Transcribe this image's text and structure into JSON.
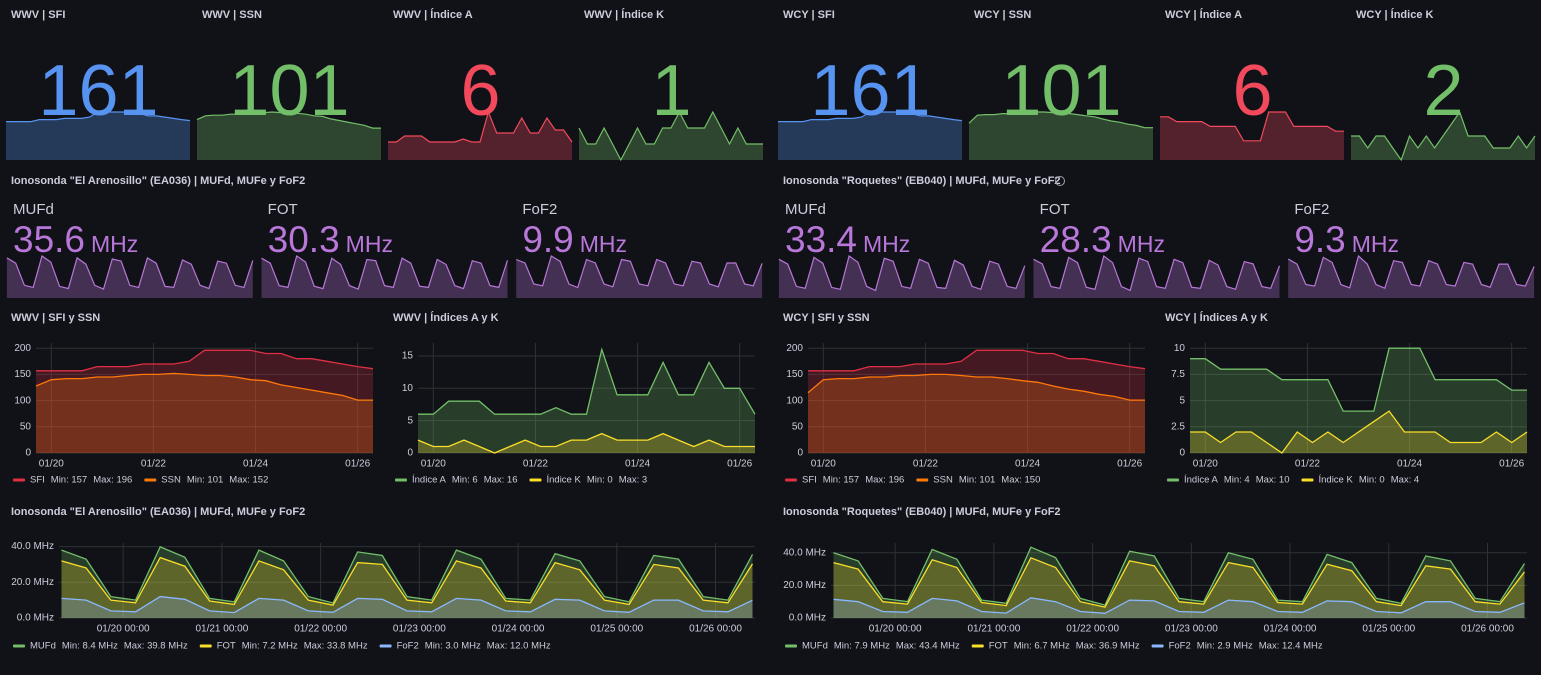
{
  "dashboards": [
    {
      "stats": [
        {
          "title": "WWV | SFI",
          "value": 161,
          "color": "#5794f2"
        },
        {
          "title": "WWV | SSN",
          "value": 101,
          "color": "#73bf69"
        },
        {
          "title": "WWV | Índice A",
          "value": 6,
          "color": "#f2495c"
        },
        {
          "title": "WWV | Índice K",
          "value": 1,
          "color": "#73bf69"
        }
      ],
      "iono_title": "Ionosonda \"El Arenosillo\" (EA036) | MUFd, MUFe y FoF2",
      "iono_color": "#b877d9",
      "iono_stats": [
        {
          "label": "MUFd",
          "value": 35.6,
          "unit": "MHz"
        },
        {
          "label": "FOT",
          "value": 30.3,
          "unit": "MHz"
        },
        {
          "label": "FoF2",
          "value": 9.9,
          "unit": "MHz"
        }
      ],
      "sfi_chart": {
        "title": "WWV | SFI y SSN",
        "x": [
          19.7,
          20,
          20.3,
          20.6,
          20.9,
          21.2,
          21.5,
          21.8,
          22.1,
          22.4,
          22.7,
          23,
          23.3,
          23.6,
          23.9,
          24.2,
          24.5,
          24.8,
          25.1,
          25.4,
          25.7,
          26,
          26.3
        ],
        "xlim": [
          19.7,
          26.3
        ],
        "xticks": [
          {
            "value": 20,
            "label": "01/20"
          },
          {
            "value": 22,
            "label": "01/22"
          },
          {
            "value": 24,
            "label": "01/24"
          },
          {
            "value": 26,
            "label": "01/26"
          }
        ],
        "ylim": [
          0,
          210
        ],
        "yticks": [
          0,
          50,
          100,
          150,
          200
        ],
        "series": [
          {
            "name": "SFI",
            "color": "#e02f44",
            "min": "Min: 157",
            "max": "Max: 196",
            "values": [
              157,
              157,
              157,
              157,
              165,
              165,
              165,
              170,
              170,
              170,
              175,
              196,
              196,
              196,
              196,
              190,
              190,
              180,
              180,
              175,
              170,
              165,
              161
            ]
          },
          {
            "name": "SSN",
            "color": "#ff780a",
            "min": "Min: 101",
            "max": "Max: 152",
            "values": [
              128,
              140,
              142,
              142,
              145,
              145,
              148,
              150,
              150,
              152,
              150,
              148,
              148,
              145,
              140,
              138,
              130,
              125,
              120,
              115,
              110,
              101,
              101
            ]
          }
        ]
      },
      "ak_chart": {
        "title": "WWV | Índices A y K",
        "x": [
          19.7,
          20,
          20.3,
          20.6,
          20.9,
          21.2,
          21.5,
          21.8,
          22.1,
          22.4,
          22.7,
          23,
          23.3,
          23.6,
          23.9,
          24.2,
          24.5,
          24.8,
          25.1,
          25.4,
          25.7,
          26,
          26.3
        ],
        "xlim": [
          19.7,
          26.3
        ],
        "xticks": [
          {
            "value": 20,
            "label": "01/20"
          },
          {
            "value": 22,
            "label": "01/22"
          },
          {
            "value": 24,
            "label": "01/24"
          },
          {
            "value": 26,
            "label": "01/26"
          }
        ],
        "ylim": [
          0,
          17
        ],
        "yticks": [
          0,
          5,
          10,
          15
        ],
        "series": [
          {
            "name": "Índice A",
            "color": "#73bf69",
            "min": "Min: 6",
            "max": "Max: 16",
            "values": [
              6,
              6,
              8,
              8,
              8,
              6,
              6,
              6,
              6,
              7,
              6,
              6,
              16,
              9,
              9,
              9,
              14,
              9,
              9,
              14,
              10,
              10,
              6
            ]
          },
          {
            "name": "Índice K",
            "color": "#fade2a",
            "min": "Min: 0",
            "max": "Max: 3",
            "values": [
              2,
              1,
              1,
              2,
              1,
              0,
              1,
              2,
              1,
              1,
              2,
              2,
              3,
              2,
              2,
              2,
              3,
              2,
              1,
              2,
              1,
              1,
              1
            ]
          }
        ]
      },
      "muf_chart": {
        "title": "Ionosonda \"El Arenosillo\" (EA036) | MUFd, MUFe y FoF2",
        "x": [
          19.375,
          19.625,
          19.875,
          20.125,
          20.375,
          20.625,
          20.875,
          21.125,
          21.375,
          21.625,
          21.875,
          22.125,
          22.375,
          22.625,
          22.875,
          23.125,
          23.375,
          23.625,
          23.875,
          24.125,
          24.375,
          24.625,
          24.875,
          25.125,
          25.375,
          25.625,
          25.875,
          26.125,
          26.375
        ],
        "xlim": [
          19.35,
          26.4
        ],
        "xticks": [
          {
            "value": 20,
            "label": "01/20 00:00"
          },
          {
            "value": 21,
            "label": "01/21 00:00"
          },
          {
            "value": 22,
            "label": "01/22 00:00"
          },
          {
            "value": 23,
            "label": "01/23 00:00"
          },
          {
            "value": 24,
            "label": "01/24 00:00"
          },
          {
            "value": 25,
            "label": "01/25 00:00"
          },
          {
            "value": 26,
            "label": "01/26 00:00"
          }
        ],
        "ylim": [
          0,
          42
        ],
        "yticks": [
          {
            "value": 0,
            "label": "0.0 MHz"
          },
          {
            "value": 20,
            "label": "20.0 MHz"
          },
          {
            "value": 40,
            "label": "40.0 MHz"
          }
        ],
        "series": [
          {
            "name": "MUFd",
            "color": "#73bf69",
            "min": "Min: 8.4 MHz",
            "max": "Max: 39.8 MHz",
            "values": [
              38,
              33,
              12,
              10,
              39.8,
              34,
              11,
              9,
              38,
              32,
              12,
              8.4,
              37,
              35,
              12,
              10,
              38,
              33,
              11,
              10,
              36,
              32,
              12,
              9,
              35,
              33,
              12,
              10,
              35.6
            ]
          },
          {
            "name": "FOT",
            "color": "#fade2a",
            "min": "Min: 7.2 MHz",
            "max": "Max: 33.8 MHz",
            "values": [
              32,
              28,
              10,
              8.5,
              33.8,
              29,
              9.5,
              7.6,
              32,
              27,
              10,
              7.2,
              31,
              30,
              10,
              8.5,
              32,
              28,
              9.5,
              8.5,
              31,
              27,
              10,
              7.6,
              30,
              28,
              10,
              8.5,
              30.3
            ]
          },
          {
            "name": "FoF2",
            "color": "#8ab8ff",
            "min": "Min: 3.0 MHz",
            "max": "Max: 12.0 MHz",
            "values": [
              11,
              10,
              4,
              3.5,
              12,
              10.5,
              4,
              3,
              11,
              10,
              4,
              3.2,
              11,
              10.5,
              4,
              3.5,
              11,
              10,
              4,
              3.5,
              10.5,
              10,
              4,
              3.2,
              10,
              10,
              4,
              3.5,
              9.9
            ]
          }
        ]
      }
    },
    {
      "stats": [
        {
          "title": "WCY | SFI",
          "value": 161,
          "color": "#5794f2"
        },
        {
          "title": "WCY | SSN",
          "value": 101,
          "color": "#73bf69"
        },
        {
          "title": "WCY | Índice A",
          "value": 6,
          "color": "#f2495c"
        },
        {
          "title": "WCY | Índice K",
          "value": 2,
          "color": "#73bf69"
        }
      ],
      "iono_title": "Ionosonda \"Roquetes\" (EB040) | MUFd, MUFe y FoF2",
      "iono_color": "#b877d9",
      "iono_stats": [
        {
          "label": "MUFd",
          "value": 33.4,
          "unit": "MHz"
        },
        {
          "label": "FOT",
          "value": 28.3,
          "unit": "MHz"
        },
        {
          "label": "FoF2",
          "value": 9.3,
          "unit": "MHz"
        }
      ],
      "sfi_chart": {
        "title": "WCY | SFI y SSN",
        "x": [
          19.7,
          20,
          20.3,
          20.6,
          20.9,
          21.2,
          21.5,
          21.8,
          22.1,
          22.4,
          22.7,
          23,
          23.3,
          23.6,
          23.9,
          24.2,
          24.5,
          24.8,
          25.1,
          25.4,
          25.7,
          26,
          26.3
        ],
        "xlim": [
          19.7,
          26.3
        ],
        "xticks": [
          {
            "value": 20,
            "label": "01/20"
          },
          {
            "value": 22,
            "label": "01/22"
          },
          {
            "value": 24,
            "label": "01/24"
          },
          {
            "value": 26,
            "label": "01/26"
          }
        ],
        "ylim": [
          0,
          210
        ],
        "yticks": [
          0,
          50,
          100,
          150,
          200
        ],
        "series": [
          {
            "name": "SFI",
            "color": "#e02f44",
            "min": "Min: 157",
            "max": "Max: 196",
            "values": [
              157,
              157,
              157,
              157,
              165,
              165,
              165,
              170,
              170,
              170,
              175,
              196,
              196,
              196,
              196,
              190,
              190,
              180,
              180,
              175,
              170,
              165,
              161
            ]
          },
          {
            "name": "SSN",
            "color": "#ff780a",
            "min": "Min: 101",
            "max": "Max: 150",
            "values": [
              115,
              140,
              142,
              142,
              145,
              145,
              148,
              148,
              150,
              150,
              148,
              145,
              145,
              142,
              138,
              135,
              128,
              122,
              118,
              112,
              108,
              101,
              101
            ]
          }
        ]
      },
      "ak_chart": {
        "title": "WCY | Índices A y K",
        "x": [
          19.7,
          20,
          20.3,
          20.6,
          20.9,
          21.2,
          21.5,
          21.8,
          22.1,
          22.4,
          22.7,
          23,
          23.3,
          23.6,
          23.9,
          24.2,
          24.5,
          24.8,
          25.1,
          25.4,
          25.7,
          26,
          26.3
        ],
        "xlim": [
          19.7,
          26.3
        ],
        "xticks": [
          {
            "value": 20,
            "label": "01/20"
          },
          {
            "value": 22,
            "label": "01/22"
          },
          {
            "value": 24,
            "label": "01/24"
          },
          {
            "value": 26,
            "label": "01/26"
          }
        ],
        "ylim": [
          0,
          10.5
        ],
        "yticks": [
          0,
          2.5,
          5,
          7.5,
          10
        ],
        "series": [
          {
            "name": "Índice A",
            "color": "#73bf69",
            "min": "Min: 4",
            "max": "Max: 10",
            "values": [
              9,
              9,
              8,
              8,
              8,
              8,
              7,
              7,
              7,
              7,
              4,
              4,
              4,
              10,
              10,
              10,
              7,
              7,
              7,
              7,
              7,
              6,
              6
            ]
          },
          {
            "name": "Índice K",
            "color": "#fade2a",
            "min": "Min: 0",
            "max": "Max: 4",
            "values": [
              2,
              2,
              1,
              2,
              2,
              1,
              0,
              2,
              1,
              2,
              1,
              2,
              3,
              4,
              2,
              2,
              2,
              1,
              1,
              1,
              2,
              1,
              2
            ]
          }
        ]
      },
      "muf_chart": {
        "title": "Ionosonda \"Roquetes\" (EB040) | MUFd, MUFe y FoF2",
        "x": [
          19.375,
          19.625,
          19.875,
          20.125,
          20.375,
          20.625,
          20.875,
          21.125,
          21.375,
          21.625,
          21.875,
          22.125,
          22.375,
          22.625,
          22.875,
          23.125,
          23.375,
          23.625,
          23.875,
          24.125,
          24.375,
          24.625,
          24.875,
          25.125,
          25.375,
          25.625,
          25.875,
          26.125,
          26.375
        ],
        "xlim": [
          19.35,
          26.4
        ],
        "xticks": [
          {
            "value": 20,
            "label": "01/20 00:00"
          },
          {
            "value": 21,
            "label": "01/21 00:00"
          },
          {
            "value": 22,
            "label": "01/22 00:00"
          },
          {
            "value": 23,
            "label": "01/23 00:00"
          },
          {
            "value": 24,
            "label": "01/24 00:00"
          },
          {
            "value": 25,
            "label": "01/25 00:00"
          },
          {
            "value": 26,
            "label": "01/26 00:00"
          }
        ],
        "ylim": [
          0,
          46
        ],
        "yticks": [
          {
            "value": 0,
            "label": "0.0 MHz"
          },
          {
            "value": 20,
            "label": "20.0 MHz"
          },
          {
            "value": 40,
            "label": "40.0 MHz"
          }
        ],
        "series": [
          {
            "name": "MUFd",
            "color": "#73bf69",
            "min": "Min: 7.9 MHz",
            "max": "Max: 43.4 MHz",
            "values": [
              40,
              35,
              12,
              10,
              42,
              36,
              11,
              9,
              43.4,
              37,
              12,
              7.9,
              41,
              38,
              12,
              10,
              40,
              36,
              11,
              10,
              39,
              34,
              12,
              9,
              38,
              35,
              12,
              10,
              33.4
            ]
          },
          {
            "name": "FOT",
            "color": "#fade2a",
            "min": "Min: 6.7 MHz",
            "max": "Max: 36.9 MHz",
            "values": [
              34,
              30,
              10,
              8.5,
              35.7,
              31,
              9.5,
              7.6,
              36.9,
              31,
              10,
              6.7,
              35,
              32,
              10,
              8.5,
              34,
              31,
              9.5,
              8.5,
              33,
              29,
              10,
              7.6,
              32,
              30,
              10,
              8.5,
              28.3
            ]
          },
          {
            "name": "FoF2",
            "color": "#8ab8ff",
            "min": "Min: 2.9 MHz",
            "max": "Max: 12.4 MHz",
            "values": [
              11.5,
              10,
              4,
              3.5,
              12,
              10.5,
              4,
              3,
              12.4,
              10,
              4,
              2.9,
              11,
              10.5,
              4,
              3.5,
              11,
              10,
              4,
              3.5,
              10.5,
              10,
              4,
              3.2,
              10,
              10,
              4,
              3.5,
              9.3
            ]
          }
        ]
      }
    }
  ]
}
